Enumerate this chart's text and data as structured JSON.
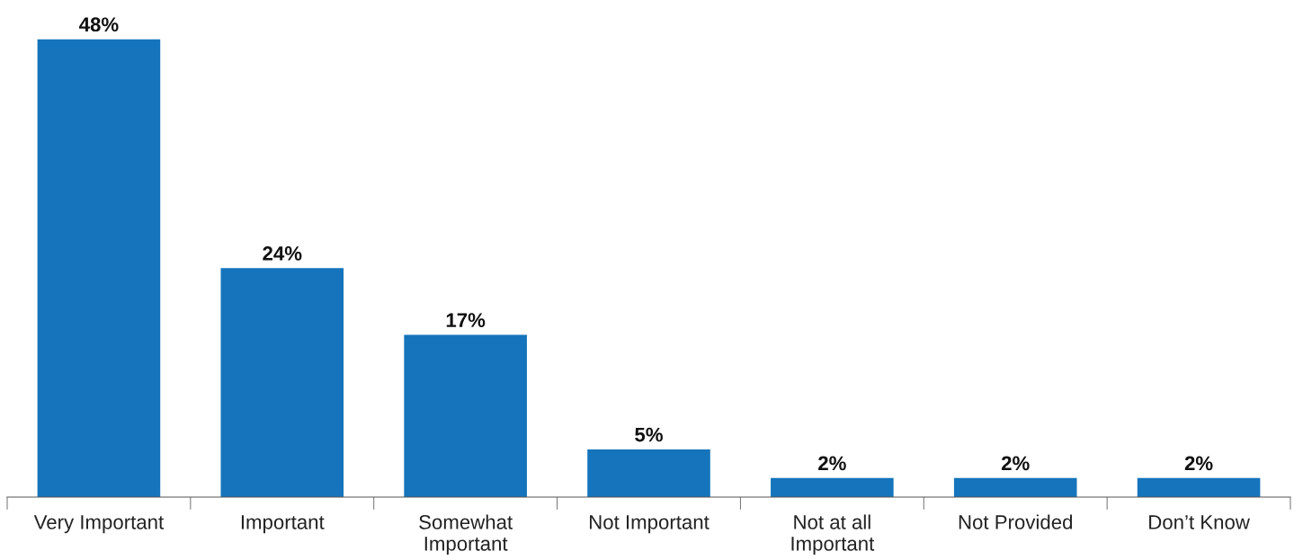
{
  "chart_data": {
    "type": "bar",
    "categories": [
      "Very Important",
      "Important",
      "Somewhat Important",
      "Not Important",
      "Not at all Important",
      "Not Provided",
      "Don’t Know"
    ],
    "values": [
      48,
      24,
      17,
      5,
      2,
      2,
      2
    ],
    "value_labels": [
      "48%",
      "24%",
      "17%",
      "5%",
      "2%",
      "2%",
      "2%"
    ],
    "color": "#1574bb",
    "grid": false,
    "legend": false
  }
}
